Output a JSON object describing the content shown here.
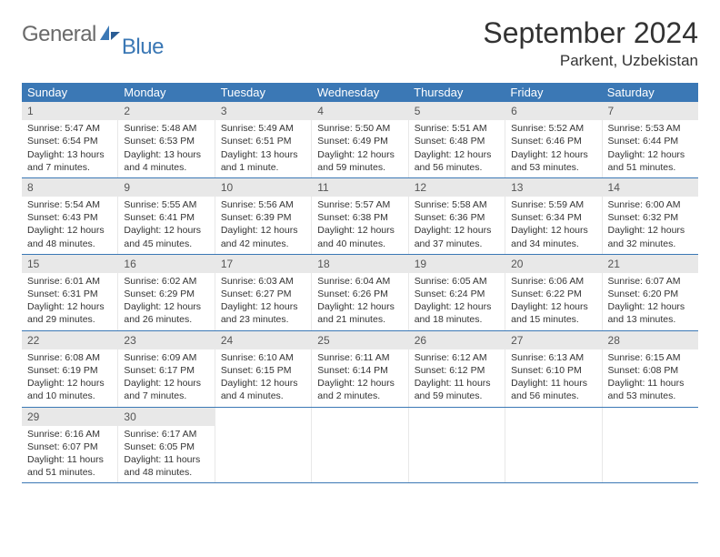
{
  "brand": {
    "part1": "General",
    "part2": "Blue"
  },
  "title": "September 2024",
  "location": "Parkent, Uzbekistan",
  "colors": {
    "header_bg": "#3b78b5",
    "header_text": "#ffffff",
    "daynum_bg": "#e8e8e8",
    "row_border": "#3b78b5",
    "logo_gray": "#6a6a6a",
    "logo_blue": "#3b78b5",
    "text": "#333333"
  },
  "weekdays": [
    "Sunday",
    "Monday",
    "Tuesday",
    "Wednesday",
    "Thursday",
    "Friday",
    "Saturday"
  ],
  "weeks": [
    [
      {
        "n": "1",
        "sr": "Sunrise: 5:47 AM",
        "ss": "Sunset: 6:54 PM",
        "dl": "Daylight: 13 hours and 7 minutes."
      },
      {
        "n": "2",
        "sr": "Sunrise: 5:48 AM",
        "ss": "Sunset: 6:53 PM",
        "dl": "Daylight: 13 hours and 4 minutes."
      },
      {
        "n": "3",
        "sr": "Sunrise: 5:49 AM",
        "ss": "Sunset: 6:51 PM",
        "dl": "Daylight: 13 hours and 1 minute."
      },
      {
        "n": "4",
        "sr": "Sunrise: 5:50 AM",
        "ss": "Sunset: 6:49 PM",
        "dl": "Daylight: 12 hours and 59 minutes."
      },
      {
        "n": "5",
        "sr": "Sunrise: 5:51 AM",
        "ss": "Sunset: 6:48 PM",
        "dl": "Daylight: 12 hours and 56 minutes."
      },
      {
        "n": "6",
        "sr": "Sunrise: 5:52 AM",
        "ss": "Sunset: 6:46 PM",
        "dl": "Daylight: 12 hours and 53 minutes."
      },
      {
        "n": "7",
        "sr": "Sunrise: 5:53 AM",
        "ss": "Sunset: 6:44 PM",
        "dl": "Daylight: 12 hours and 51 minutes."
      }
    ],
    [
      {
        "n": "8",
        "sr": "Sunrise: 5:54 AM",
        "ss": "Sunset: 6:43 PM",
        "dl": "Daylight: 12 hours and 48 minutes."
      },
      {
        "n": "9",
        "sr": "Sunrise: 5:55 AM",
        "ss": "Sunset: 6:41 PM",
        "dl": "Daylight: 12 hours and 45 minutes."
      },
      {
        "n": "10",
        "sr": "Sunrise: 5:56 AM",
        "ss": "Sunset: 6:39 PM",
        "dl": "Daylight: 12 hours and 42 minutes."
      },
      {
        "n": "11",
        "sr": "Sunrise: 5:57 AM",
        "ss": "Sunset: 6:38 PM",
        "dl": "Daylight: 12 hours and 40 minutes."
      },
      {
        "n": "12",
        "sr": "Sunrise: 5:58 AM",
        "ss": "Sunset: 6:36 PM",
        "dl": "Daylight: 12 hours and 37 minutes."
      },
      {
        "n": "13",
        "sr": "Sunrise: 5:59 AM",
        "ss": "Sunset: 6:34 PM",
        "dl": "Daylight: 12 hours and 34 minutes."
      },
      {
        "n": "14",
        "sr": "Sunrise: 6:00 AM",
        "ss": "Sunset: 6:32 PM",
        "dl": "Daylight: 12 hours and 32 minutes."
      }
    ],
    [
      {
        "n": "15",
        "sr": "Sunrise: 6:01 AM",
        "ss": "Sunset: 6:31 PM",
        "dl": "Daylight: 12 hours and 29 minutes."
      },
      {
        "n": "16",
        "sr": "Sunrise: 6:02 AM",
        "ss": "Sunset: 6:29 PM",
        "dl": "Daylight: 12 hours and 26 minutes."
      },
      {
        "n": "17",
        "sr": "Sunrise: 6:03 AM",
        "ss": "Sunset: 6:27 PM",
        "dl": "Daylight: 12 hours and 23 minutes."
      },
      {
        "n": "18",
        "sr": "Sunrise: 6:04 AM",
        "ss": "Sunset: 6:26 PM",
        "dl": "Daylight: 12 hours and 21 minutes."
      },
      {
        "n": "19",
        "sr": "Sunrise: 6:05 AM",
        "ss": "Sunset: 6:24 PM",
        "dl": "Daylight: 12 hours and 18 minutes."
      },
      {
        "n": "20",
        "sr": "Sunrise: 6:06 AM",
        "ss": "Sunset: 6:22 PM",
        "dl": "Daylight: 12 hours and 15 minutes."
      },
      {
        "n": "21",
        "sr": "Sunrise: 6:07 AM",
        "ss": "Sunset: 6:20 PM",
        "dl": "Daylight: 12 hours and 13 minutes."
      }
    ],
    [
      {
        "n": "22",
        "sr": "Sunrise: 6:08 AM",
        "ss": "Sunset: 6:19 PM",
        "dl": "Daylight: 12 hours and 10 minutes."
      },
      {
        "n": "23",
        "sr": "Sunrise: 6:09 AM",
        "ss": "Sunset: 6:17 PM",
        "dl": "Daylight: 12 hours and 7 minutes."
      },
      {
        "n": "24",
        "sr": "Sunrise: 6:10 AM",
        "ss": "Sunset: 6:15 PM",
        "dl": "Daylight: 12 hours and 4 minutes."
      },
      {
        "n": "25",
        "sr": "Sunrise: 6:11 AM",
        "ss": "Sunset: 6:14 PM",
        "dl": "Daylight: 12 hours and 2 minutes."
      },
      {
        "n": "26",
        "sr": "Sunrise: 6:12 AM",
        "ss": "Sunset: 6:12 PM",
        "dl": "Daylight: 11 hours and 59 minutes."
      },
      {
        "n": "27",
        "sr": "Sunrise: 6:13 AM",
        "ss": "Sunset: 6:10 PM",
        "dl": "Daylight: 11 hours and 56 minutes."
      },
      {
        "n": "28",
        "sr": "Sunrise: 6:15 AM",
        "ss": "Sunset: 6:08 PM",
        "dl": "Daylight: 11 hours and 53 minutes."
      }
    ],
    [
      {
        "n": "29",
        "sr": "Sunrise: 6:16 AM",
        "ss": "Sunset: 6:07 PM",
        "dl": "Daylight: 11 hours and 51 minutes."
      },
      {
        "n": "30",
        "sr": "Sunrise: 6:17 AM",
        "ss": "Sunset: 6:05 PM",
        "dl": "Daylight: 11 hours and 48 minutes."
      },
      null,
      null,
      null,
      null,
      null
    ]
  ]
}
